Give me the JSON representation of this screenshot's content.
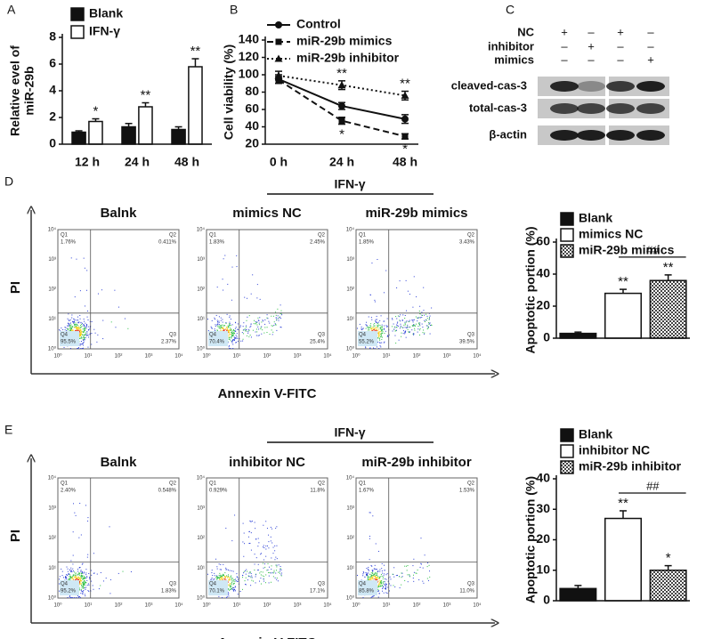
{
  "chart_data": [
    {
      "type": "bar",
      "panel": "A",
      "y_label": [
        "Relative evel of",
        "miR-29b"
      ],
      "categories": [
        "12 h",
        "24 h",
        "48 h"
      ],
      "ylim": [
        0,
        8
      ],
      "yticks": [
        0,
        2,
        4,
        6,
        8
      ],
      "series": [
        {
          "name": "Blank",
          "color": "#111111",
          "values": [
            0.9,
            1.3,
            1.1
          ],
          "errors": [
            0.1,
            0.25,
            0.2
          ]
        },
        {
          "name": "IFN-γ",
          "color": "#ffffff",
          "values": [
            1.7,
            2.8,
            5.8
          ],
          "errors": [
            0.2,
            0.3,
            0.6
          ],
          "significance": [
            "*",
            "**",
            "**"
          ]
        }
      ]
    },
    {
      "type": "line",
      "panel": "B",
      "y_label": [
        "Cell viability (%)"
      ],
      "categories": [
        "0 h",
        "24 h",
        "48 h"
      ],
      "ylim": [
        20,
        140
      ],
      "yticks": [
        20,
        40,
        60,
        80,
        100,
        120,
        140
      ],
      "series": [
        {
          "name": "Control",
          "color": "#111111",
          "dash": "solid",
          "marker": "circle",
          "values": [
            95,
            64,
            49
          ],
          "errors": [
            5,
            4,
            5
          ]
        },
        {
          "name": "miR-29b mimics",
          "color": "#111111",
          "dash": "dashed",
          "marker": "square",
          "values": [
            94,
            47,
            29
          ],
          "errors": [
            4,
            4,
            3
          ],
          "significance": [
            null,
            "*",
            "*"
          ]
        },
        {
          "name": "miR-29b inhibitor",
          "color": "#111111",
          "dash": "dotted",
          "marker": "triangle",
          "values": [
            99,
            88,
            76
          ],
          "errors": [
            5,
            5,
            5
          ],
          "significance": [
            null,
            "**",
            "**"
          ]
        }
      ]
    },
    {
      "type": "bar",
      "y_label": [
        "Apoptotic portion (%)"
      ],
      "categories": [
        null
      ],
      "ylim": [
        0,
        60
      ],
      "yticks": [
        0,
        20,
        40,
        60
      ],
      "bracket_label": "##",
      "series": [
        {
          "name": "Blank",
          "color": "#111111",
          "values": [
            3
          ],
          "errors": [
            0.8
          ]
        },
        {
          "name": "mimics NC",
          "color": "#ffffff",
          "values": [
            28
          ],
          "errors": [
            2.5
          ],
          "significance": [
            "**"
          ]
        },
        {
          "name": "miR-29b mimics",
          "color": "#555555",
          "pattern": "checker",
          "values": [
            36
          ],
          "errors": [
            3.5
          ],
          "significance": [
            "**"
          ]
        }
      ]
    },
    {
      "type": "bar",
      "y_label": [
        "Apoptotic portion (%)"
      ],
      "categories": [
        null
      ],
      "ylim": [
        0,
        40
      ],
      "yticks": [
        0,
        10,
        20,
        30,
        40
      ],
      "bracket_label": "##",
      "series": [
        {
          "name": "Blank",
          "color": "#111111",
          "values": [
            4
          ],
          "errors": [
            1
          ]
        },
        {
          "name": "inhibitor NC",
          "color": "#ffffff",
          "values": [
            27
          ],
          "errors": [
            2.5
          ],
          "significance": [
            "**"
          ]
        },
        {
          "name": "miR-29b inhibitor",
          "color": "#555555",
          "pattern": "checker",
          "values": [
            10
          ],
          "errors": [
            1.5
          ],
          "significance": [
            "*"
          ]
        }
      ]
    }
  ],
  "blot": {
    "letter": "C",
    "conditions": [
      {
        "name": "NC",
        "signs": [
          "+",
          "–",
          "+",
          "–"
        ]
      },
      {
        "name": "inhibitor",
        "signs": [
          "–",
          "+",
          "–",
          "–"
        ]
      },
      {
        "name": "mimics",
        "signs": [
          "–",
          "–",
          "–",
          "+"
        ]
      }
    ],
    "bands": [
      "cleaved-cas-3",
      "total-cas-3",
      "β-actin"
    ]
  },
  "flow_ticks": [
    "10⁰",
    "10¹",
    "10²",
    "10³",
    "10⁴"
  ],
  "flow": [
    {
      "letter": "D",
      "group_label": "IFN-γ",
      "x_label": "Annexin V-FITC",
      "y_label": "PI",
      "plots": [
        {
          "title": "Balnk",
          "quadrants": [
            {
              "name": "Q1",
              "percent": "1.76%"
            },
            {
              "name": "Q2",
              "percent": "0.411%"
            },
            {
              "name": "Q3",
              "percent": "2.37%"
            },
            {
              "name": "Q4",
              "percent": "95.5%"
            }
          ]
        },
        {
          "title": "mimics NC",
          "quadrants": [
            {
              "name": "Q1",
              "percent": "1.83%"
            },
            {
              "name": "Q2",
              "percent": "2.45%"
            },
            {
              "name": "Q3",
              "percent": "25.4%"
            },
            {
              "name": "Q4",
              "percent": "70.4%"
            }
          ]
        },
        {
          "title": "miR-29b mimics",
          "quadrants": [
            {
              "name": "Q1",
              "percent": "1.85%"
            },
            {
              "name": "Q2",
              "percent": "3.43%"
            },
            {
              "name": "Q3",
              "percent": "39.5%"
            },
            {
              "name": "Q4",
              "percent": "55.2%"
            }
          ]
        }
      ]
    },
    {
      "letter": "E",
      "group_label": "IFN-γ",
      "x_label": "Annexin V-FITC",
      "y_label": "PI",
      "plots": [
        {
          "title": "Balnk",
          "quadrants": [
            {
              "name": "Q1",
              "percent": "2.40%"
            },
            {
              "name": "Q2",
              "percent": "0.548%"
            },
            {
              "name": "Q3",
              "percent": "1.83%"
            },
            {
              "name": "Q4",
              "percent": "95.2%"
            }
          ]
        },
        {
          "title": "inhibitor NC",
          "quadrants": [
            {
              "name": "Q1",
              "percent": "0.929%"
            },
            {
              "name": "Q2",
              "percent": "11.8%"
            },
            {
              "name": "Q3",
              "percent": "17.1%"
            },
            {
              "name": "Q4",
              "percent": "70.1%"
            }
          ]
        },
        {
          "title": "miR-29b inhibitor",
          "quadrants": [
            {
              "name": "Q1",
              "percent": "1.67%"
            },
            {
              "name": "Q2",
              "percent": "1.53%"
            },
            {
              "name": "Q3",
              "percent": "11.0%"
            },
            {
              "name": "Q4",
              "percent": "85.8%"
            }
          ]
        }
      ]
    }
  ]
}
